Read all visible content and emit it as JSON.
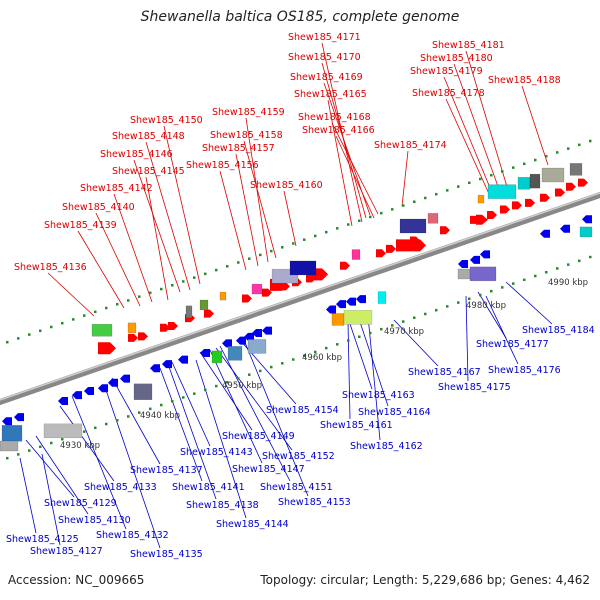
{
  "title": "Shewanella baltica OS185, complete genome",
  "footer": {
    "accession": "Accession: NC_009665",
    "summary": "Topology: circular; Length: 5,229,686 bp; Genes: 4,462"
  },
  "colors": {
    "top_label": "#dd0000",
    "bottom_label": "#0000cc",
    "plus_strand_arrow": "#ff0000",
    "minus_strand_arrow": "#0000ee",
    "backbone": "#888888",
    "tick": "#2a8a2a"
  },
  "kbp_markers": [
    "4930 kbp",
    "4940 kbp",
    "4950 kbp",
    "4960 kbp",
    "4970 kbp",
    "4980 kbp",
    "4990 kbp"
  ],
  "top_labels": [
    "Shew185_4171",
    "Shew185_4170",
    "Shew185_4169",
    "Shew185_4165",
    "Shew185_4168",
    "Shew185_4166",
    "Shew185_4181",
    "Shew185_4180",
    "Shew185_4179",
    "Shew185_4178",
    "Shew185_4188",
    "Shew185_4174",
    "Shew185_4150",
    "Shew185_4159",
    "Shew185_4148",
    "Shew185_4158",
    "Shew185_4146",
    "Shew185_4157",
    "Shew185_4145",
    "Shew185_4156",
    "Shew185_4160",
    "Shew185_4142",
    "Shew185_4140",
    "Shew185_4139",
    "Shew185_4136"
  ],
  "bottom_labels": [
    "Shew185_4184",
    "Shew185_4177",
    "Shew185_4167",
    "Shew185_4176",
    "Shew185_4175",
    "Shew185_4163",
    "Shew185_4164",
    "Shew185_4154",
    "Shew185_4161",
    "Shew185_4149",
    "Shew185_4162",
    "Shew185_4143",
    "Shew185_4152",
    "Shew185_4137",
    "Shew185_4147",
    "Shew185_4141",
    "Shew185_4151",
    "Shew185_4133",
    "Shew185_4153",
    "Shew185_4129",
    "Shew185_4138",
    "Shew185_4130",
    "Shew185_4144",
    "Shew185_4132",
    "Shew185_4125",
    "Shew185_4127",
    "Shew185_4135"
  ]
}
